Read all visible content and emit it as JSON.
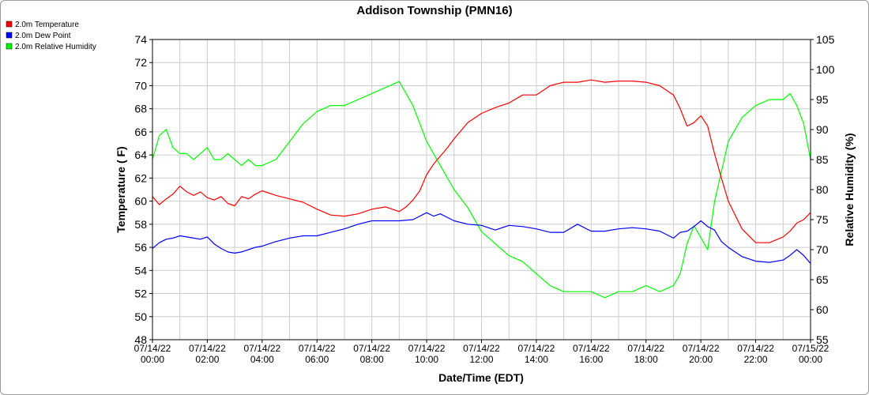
{
  "chart_data": {
    "type": "line",
    "title": "Addison Township (PMN16)",
    "xlabel": "Date/Time (EDT)",
    "ylabel_left": "Temperature ( F)",
    "ylabel_right": "Relative Humidity (%)",
    "xlim": [
      0,
      24
    ],
    "ylim_left": [
      48,
      74
    ],
    "ylim_right": [
      55,
      105
    ],
    "yticks_left": [
      48,
      50,
      52,
      54,
      56,
      58,
      60,
      62,
      64,
      66,
      68,
      70,
      72,
      74
    ],
    "yticks_right": [
      55,
      60,
      65,
      70,
      75,
      80,
      85,
      90,
      95,
      100,
      105
    ],
    "xticks": [
      {
        "x": 0,
        "date": "07/14/22",
        "time": "00:00"
      },
      {
        "x": 2,
        "date": "07/14/22",
        "time": "02:00"
      },
      {
        "x": 4,
        "date": "07/14/22",
        "time": "04:00"
      },
      {
        "x": 6,
        "date": "07/14/22",
        "time": "06:00"
      },
      {
        "x": 8,
        "date": "07/14/22",
        "time": "08:00"
      },
      {
        "x": 10,
        "date": "07/14/22",
        "time": "10:00"
      },
      {
        "x": 12,
        "date": "07/14/22",
        "time": "12:00"
      },
      {
        "x": 14,
        "date": "07/14/22",
        "time": "14:00"
      },
      {
        "x": 16,
        "date": "07/14/22",
        "time": "16:00"
      },
      {
        "x": 18,
        "date": "07/14/22",
        "time": "18:00"
      },
      {
        "x": 20,
        "date": "07/14/22",
        "time": "20:00"
      },
      {
        "x": 22,
        "date": "07/14/22",
        "time": "22:00"
      },
      {
        "x": 24,
        "date": "07/15/22",
        "time": "00:00"
      }
    ],
    "grid": true,
    "legend_position": "top-left",
    "series": [
      {
        "name": "2.0m Temperature",
        "axis": "left",
        "color": "#ff0000",
        "x": [
          0,
          0.25,
          0.5,
          0.75,
          1,
          1.25,
          1.5,
          1.75,
          2,
          2.25,
          2.5,
          2.75,
          3,
          3.25,
          3.5,
          3.75,
          4,
          4.5,
          5,
          5.5,
          6,
          6.5,
          7,
          7.5,
          8,
          8.5,
          9,
          9.25,
          9.5,
          9.75,
          10,
          10.25,
          10.5,
          10.75,
          11,
          11.5,
          12,
          12.5,
          13,
          13.5,
          14,
          14.5,
          15,
          15.5,
          16,
          16.5,
          17,
          17.5,
          18,
          18.5,
          19,
          19.25,
          19.5,
          19.75,
          20,
          20.25,
          20.5,
          20.75,
          21,
          21.5,
          22,
          22.5,
          23,
          23.25,
          23.5,
          23.75,
          24
        ],
        "y": [
          60.4,
          59.7,
          60.2,
          60.6,
          61.3,
          60.8,
          60.5,
          60.8,
          60.3,
          60.1,
          60.4,
          59.8,
          59.6,
          60.4,
          60.2,
          60.6,
          60.9,
          60.5,
          60.2,
          59.9,
          59.3,
          58.8,
          58.7,
          58.9,
          59.3,
          59.5,
          59.1,
          59.5,
          60.1,
          60.9,
          62.3,
          63.2,
          63.9,
          64.6,
          65.4,
          66.8,
          67.6,
          68.1,
          68.5,
          69.2,
          69.2,
          70.0,
          70.3,
          70.3,
          70.5,
          70.3,
          70.4,
          70.4,
          70.3,
          70.0,
          69.2,
          68.0,
          66.5,
          66.8,
          67.4,
          66.5,
          64.1,
          62.0,
          60.0,
          57.6,
          56.4,
          56.4,
          56.9,
          57.4,
          58.1,
          58.4,
          59.0
        ]
      },
      {
        "name": "2.0m Dew Point",
        "axis": "left",
        "color": "#0000ff",
        "x": [
          0,
          0.25,
          0.5,
          0.75,
          1,
          1.25,
          1.5,
          1.75,
          2,
          2.25,
          2.5,
          2.75,
          3,
          3.25,
          3.5,
          3.75,
          4,
          4.5,
          5,
          5.5,
          6,
          6.5,
          7,
          7.5,
          8,
          8.5,
          9,
          9.5,
          10,
          10.25,
          10.5,
          10.75,
          11,
          11.5,
          12,
          12.5,
          13,
          13.5,
          14,
          14.5,
          15,
          15.5,
          16,
          16.5,
          17,
          17.5,
          18,
          18.5,
          19,
          19.25,
          19.5,
          19.75,
          20,
          20.25,
          20.5,
          20.75,
          21,
          21.5,
          22,
          22.5,
          23,
          23.25,
          23.5,
          23.75,
          24
        ],
        "y": [
          55.9,
          56.4,
          56.7,
          56.8,
          57.0,
          56.9,
          56.8,
          56.7,
          56.9,
          56.3,
          55.9,
          55.6,
          55.5,
          55.6,
          55.8,
          56.0,
          56.1,
          56.5,
          56.8,
          57.0,
          57.0,
          57.3,
          57.6,
          58.0,
          58.3,
          58.3,
          58.3,
          58.4,
          59.0,
          58.7,
          58.9,
          58.6,
          58.3,
          58.0,
          57.9,
          57.5,
          57.9,
          57.8,
          57.6,
          57.3,
          57.3,
          58.0,
          57.4,
          57.4,
          57.6,
          57.7,
          57.6,
          57.4,
          56.8,
          57.3,
          57.4,
          57.8,
          58.3,
          57.8,
          57.5,
          56.5,
          56.0,
          55.2,
          54.8,
          54.7,
          54.9,
          55.3,
          55.8,
          55.3,
          54.6
        ]
      },
      {
        "name": "2.0m Relative Humidity",
        "axis": "right",
        "color": "#00ff00",
        "x": [
          0,
          0.25,
          0.5,
          0.75,
          1,
          1.25,
          1.5,
          1.75,
          2,
          2.25,
          2.5,
          2.75,
          3,
          3.25,
          3.5,
          3.75,
          4,
          4.5,
          5,
          5.5,
          6,
          6.5,
          7,
          7.5,
          8,
          8.5,
          9,
          9.25,
          9.5,
          9.75,
          10,
          10.25,
          10.5,
          10.75,
          11,
          11.5,
          12,
          12.5,
          13,
          13.5,
          14,
          14.5,
          15,
          15.5,
          16,
          16.5,
          17,
          17.5,
          18,
          18.5,
          19,
          19.25,
          19.5,
          19.75,
          20,
          20.25,
          20.5,
          20.75,
          21,
          21.5,
          22,
          22.5,
          23,
          23.25,
          23.5,
          23.75,
          24
        ],
        "y": [
          85,
          89,
          90,
          87,
          86,
          86,
          85,
          86,
          87,
          85,
          85,
          86,
          85,
          84,
          85,
          84,
          84,
          85,
          88,
          91,
          93,
          94,
          94,
          95,
          96,
          97,
          98,
          96,
          94,
          91,
          88,
          86,
          84,
          82,
          80,
          77,
          73,
          71,
          69,
          68,
          66,
          64,
          63,
          63,
          63,
          62,
          63,
          63,
          64,
          63,
          64,
          66,
          71,
          74,
          72,
          70,
          78,
          83,
          88,
          92,
          94,
          95,
          95,
          96,
          94,
          91,
          85
        ]
      }
    ]
  }
}
